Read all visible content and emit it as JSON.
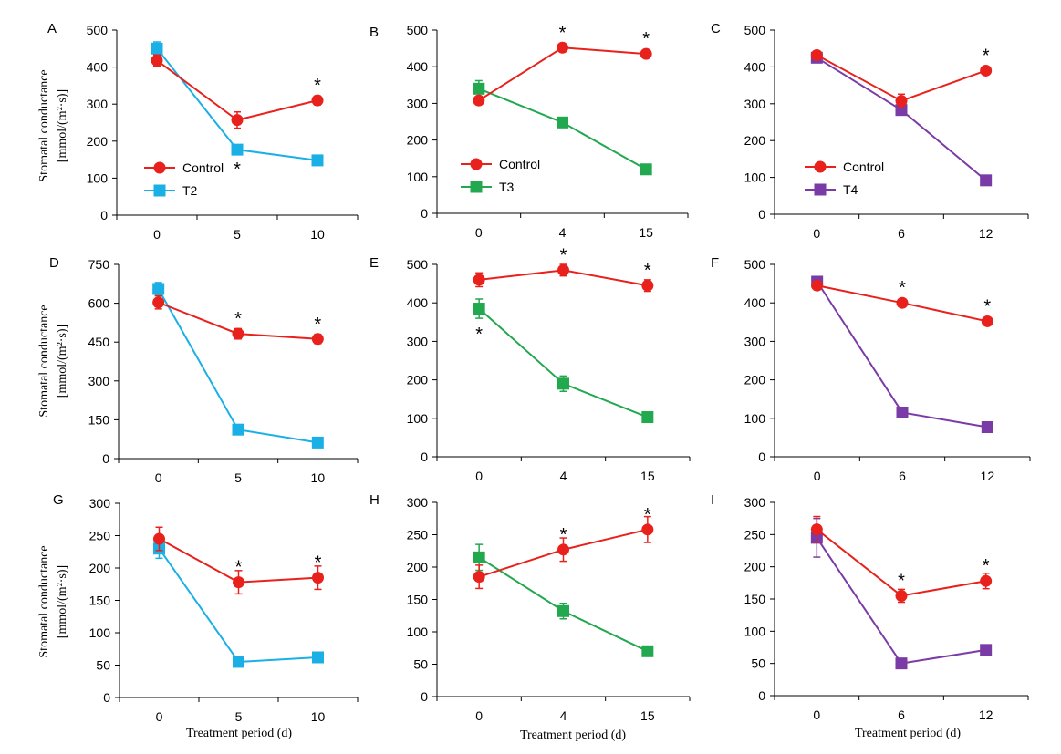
{
  "figure": {
    "ylabel_line1": "Stomatal conductance",
    "ylabel_line2_row1": "[mmol/(m²·s)]",
    "ylabel_line2_row23": "[mmol/(m²·s)]",
    "xlabel": "Treatment period (d)",
    "colors": {
      "Control": "#e8211c",
      "T2": "#1ab0e6",
      "T3": "#22a84f",
      "T4": "#7a3ba6"
    }
  },
  "chart_data": [
    {
      "panel": "A",
      "type": "line",
      "x": [
        "0",
        "5",
        "10"
      ],
      "ylim": [
        0,
        500
      ],
      "yticks": [
        0,
        100,
        200,
        300,
        400,
        500
      ],
      "legend": "inside-left-middle",
      "series": [
        {
          "name": "Control",
          "values": [
            418,
            257,
            310
          ],
          "err": [
            15,
            22,
            12
          ]
        },
        {
          "name": "T2",
          "values": [
            450,
            177,
            148
          ],
          "err": [
            18,
            8,
            8
          ],
          "sig": [
            false,
            true,
            true
          ]
        }
      ]
    },
    {
      "panel": "B",
      "type": "line",
      "x": [
        "0",
        "4",
        "15"
      ],
      "ylim": [
        0,
        500
      ],
      "yticks": [
        0,
        100,
        200,
        300,
        400,
        500
      ],
      "legend": "inside-left-middle",
      "series": [
        {
          "name": "Control",
          "values": [
            308,
            452,
            435
          ],
          "err": [
            10,
            8,
            6
          ]
        },
        {
          "name": "T3",
          "values": [
            340,
            248,
            120
          ],
          "err": [
            22,
            8,
            6
          ],
          "sig": [
            false,
            true,
            true
          ]
        }
      ]
    },
    {
      "panel": "C",
      "type": "line",
      "x": [
        "0",
        "6",
        "12"
      ],
      "ylim": [
        0,
        500
      ],
      "yticks": [
        0,
        100,
        200,
        300,
        400,
        500
      ],
      "legend": "inside-left-middle",
      "series": [
        {
          "name": "Control",
          "values": [
            432,
            308,
            390
          ],
          "err": [
            8,
            18,
            8
          ]
        },
        {
          "name": "T4",
          "values": [
            425,
            283,
            92
          ],
          "err": [
            8,
            8,
            6
          ],
          "sig": [
            false,
            false,
            true
          ]
        }
      ]
    },
    {
      "panel": "D",
      "type": "line",
      "x": [
        "0",
        "5",
        "10"
      ],
      "ylim": [
        0,
        750
      ],
      "yticks": [
        0,
        150,
        300,
        450,
        600,
        750
      ],
      "series": [
        {
          "name": "Control",
          "values": [
            603,
            482,
            462
          ],
          "err": [
            25,
            20,
            18
          ]
        },
        {
          "name": "T2",
          "values": [
            655,
            112,
            62
          ],
          "err": [
            25,
            10,
            8
          ],
          "sig": [
            false,
            true,
            true
          ]
        }
      ]
    },
    {
      "panel": "E",
      "type": "line",
      "x": [
        "0",
        "4",
        "15"
      ],
      "ylim": [
        0,
        500
      ],
      "yticks": [
        0,
        100,
        200,
        300,
        400,
        500
      ],
      "series": [
        {
          "name": "Control",
          "values": [
            460,
            485,
            445
          ],
          "err": [
            18,
            15,
            15
          ]
        },
        {
          "name": "T3",
          "values": [
            385,
            190,
            103
          ],
          "err": [
            25,
            20,
            6
          ],
          "sig": [
            true,
            true,
            true
          ]
        }
      ]
    },
    {
      "panel": "F",
      "type": "line",
      "x": [
        "0",
        "6",
        "12"
      ],
      "ylim": [
        0,
        500
      ],
      "yticks": [
        0,
        100,
        200,
        300,
        400,
        500
      ],
      "series": [
        {
          "name": "Control",
          "values": [
            445,
            400,
            352
          ],
          "err": [
            10,
            8,
            8
          ]
        },
        {
          "name": "T4",
          "values": [
            455,
            115,
            77
          ],
          "err": [
            10,
            8,
            6
          ],
          "sig": [
            false,
            true,
            true
          ]
        }
      ]
    },
    {
      "panel": "G",
      "type": "line",
      "x": [
        "0",
        "5",
        "10"
      ],
      "ylim": [
        0,
        300
      ],
      "yticks": [
        0,
        50,
        100,
        150,
        200,
        250,
        300
      ],
      "series": [
        {
          "name": "Control",
          "values": [
            245,
            178,
            185
          ],
          "err": [
            18,
            18,
            18
          ]
        },
        {
          "name": "T2",
          "values": [
            230,
            55,
            62
          ],
          "err": [
            15,
            5,
            5
          ],
          "sig": [
            false,
            true,
            true
          ]
        }
      ]
    },
    {
      "panel": "H",
      "type": "line",
      "x": [
        "0",
        "4",
        "15"
      ],
      "ylim": [
        0,
        300
      ],
      "yticks": [
        0,
        50,
        100,
        150,
        200,
        250,
        300
      ],
      "series": [
        {
          "name": "Control",
          "values": [
            185,
            227,
            258
          ],
          "err": [
            18,
            18,
            20
          ]
        },
        {
          "name": "T3",
          "values": [
            215,
            132,
            70
          ],
          "err": [
            20,
            12,
            5
          ],
          "sig": [
            false,
            true,
            true
          ]
        }
      ]
    },
    {
      "panel": "I",
      "type": "line",
      "x": [
        "0",
        "6",
        "12"
      ],
      "ylim": [
        0,
        300
      ],
      "yticks": [
        0,
        50,
        100,
        150,
        200,
        250,
        300
      ],
      "series": [
        {
          "name": "Control",
          "values": [
            258,
            155,
            178
          ],
          "err": [
            20,
            10,
            12
          ]
        },
        {
          "name": "T4",
          "values": [
            245,
            50,
            71
          ],
          "err": [
            30,
            5,
            5
          ],
          "sig": [
            false,
            true,
            true
          ]
        }
      ]
    }
  ]
}
